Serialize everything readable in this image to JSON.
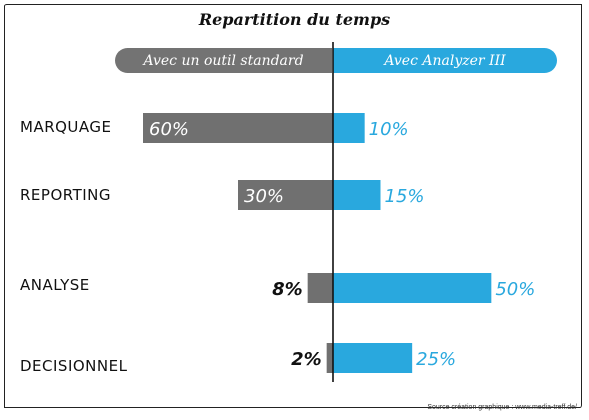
{
  "chart_data": {
    "type": "bar",
    "title": "Repartition du temps",
    "series": [
      {
        "name": "Avec un outil standard",
        "color": "#707070",
        "values": [
          60,
          30,
          8,
          2
        ],
        "labels": [
          "60%",
          "30%",
          "8%",
          "2%"
        ]
      },
      {
        "name": "Avec Analyzer III",
        "color": "#29a8de",
        "values": [
          10,
          15,
          50,
          25
        ],
        "labels": [
          "10%",
          "15%",
          "50%",
          "25%"
        ]
      }
    ],
    "categories": [
      "MARQUAGE",
      "REPORTING",
      "ANALYSE",
      "DECISIONNEL"
    ],
    "orientation": "horizontal-diverging",
    "credit": "Source création graphique : www.media-treff.de/"
  }
}
